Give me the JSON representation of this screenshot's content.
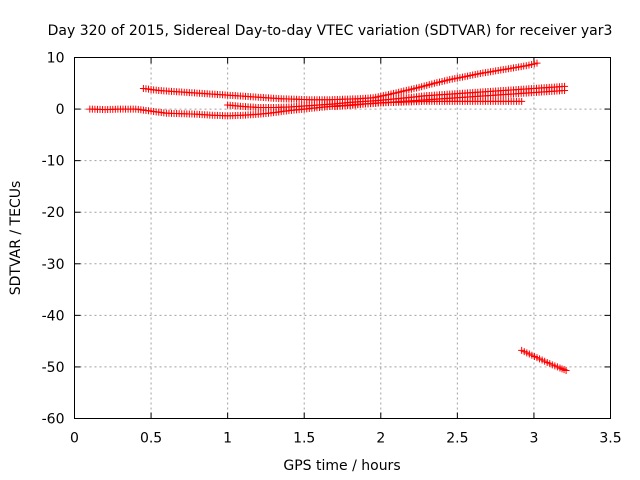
{
  "chart_data": {
    "type": "scatter",
    "title": "Day 320 of 2015, Sidereal Day-to-day VTEC variation (SDTVAR) for receiver yar3",
    "xlabel": "GPS time / hours",
    "ylabel": "SDTVAR / TECUs",
    "xlim": [
      0,
      3.5
    ],
    "ylim": [
      -60,
      10
    ],
    "xticks": [
      "0",
      "0.5",
      "1",
      "1.5",
      "2",
      "2.5",
      "3",
      "3.5"
    ],
    "yticks": [
      "10",
      "0",
      "-10",
      "-20",
      "-30",
      "-40",
      "-50",
      "-60"
    ],
    "grid": true,
    "marker": "+",
    "color": "#ff0000",
    "series": [
      {
        "x": [
          0.1,
          0.2,
          0.3,
          0.4,
          0.5,
          0.6,
          0.7,
          0.8,
          0.9,
          1.0,
          1.1,
          1.2,
          1.3,
          1.4,
          1.5,
          1.6,
          1.7,
          1.8,
          1.9,
          2.0,
          2.1,
          2.2,
          2.3,
          2.4,
          2.5,
          2.6,
          2.7,
          2.8,
          2.92
        ],
        "y": [
          0.0,
          -0.1,
          0.0,
          0.0,
          -0.4,
          -0.8,
          -0.9,
          -1.0,
          -1.2,
          -1.3,
          -1.2,
          -1.0,
          -0.7,
          -0.3,
          0.0,
          0.3,
          0.6,
          0.8,
          1.0,
          1.2,
          1.3,
          1.4,
          1.5,
          1.5,
          1.5,
          1.5,
          1.5,
          1.5,
          1.5
        ]
      },
      {
        "x": [
          0.45,
          0.55,
          0.65,
          0.75,
          0.85,
          0.95,
          1.05,
          1.15,
          1.25,
          1.35,
          1.45,
          1.55,
          1.65,
          1.75,
          1.85,
          1.95,
          2.05,
          2.15,
          2.25,
          2.35,
          2.45,
          2.55,
          2.65,
          2.75,
          2.85,
          2.95,
          3.02
        ],
        "y": [
          4.0,
          3.6,
          3.4,
          3.2,
          3.0,
          2.8,
          2.6,
          2.4,
          2.2,
          2.0,
          1.9,
          1.8,
          1.8,
          1.9,
          2.0,
          2.2,
          2.8,
          3.5,
          4.2,
          5.0,
          5.7,
          6.3,
          6.9,
          7.4,
          7.9,
          8.4,
          8.9
        ]
      },
      {
        "x": [
          1.0,
          1.1,
          1.2,
          1.3,
          1.4,
          1.5,
          1.6,
          1.7,
          1.8,
          1.9,
          2.0,
          2.1,
          2.2,
          2.3,
          2.4,
          2.5,
          2.6,
          2.7,
          2.8,
          2.9,
          3.0,
          3.1,
          3.2
        ],
        "y": [
          0.8,
          0.5,
          0.3,
          0.3,
          0.4,
          0.6,
          0.8,
          1.0,
          1.3,
          1.5,
          1.7,
          2.0,
          2.3,
          2.6,
          2.8,
          3.0,
          3.2,
          3.4,
          3.6,
          3.8,
          4.0,
          4.2,
          4.4
        ]
      },
      {
        "x": [
          1.7,
          1.8,
          1.9,
          2.0,
          2.1,
          2.2,
          2.3,
          2.4,
          2.5,
          2.6,
          2.7,
          2.8,
          2.9,
          3.0,
          3.1,
          3.2
        ],
        "y": [
          0.5,
          0.7,
          1.0,
          1.2,
          1.4,
          1.6,
          1.8,
          2.0,
          2.2,
          2.4,
          2.6,
          2.8,
          3.0,
          3.2,
          3.4,
          3.6
        ]
      },
      {
        "x": [
          2.92,
          2.97,
          3.02,
          3.07,
          3.12,
          3.17,
          3.21
        ],
        "y": [
          -46.8,
          -47.5,
          -48.2,
          -48.9,
          -49.6,
          -50.2,
          -50.7
        ]
      }
    ]
  }
}
